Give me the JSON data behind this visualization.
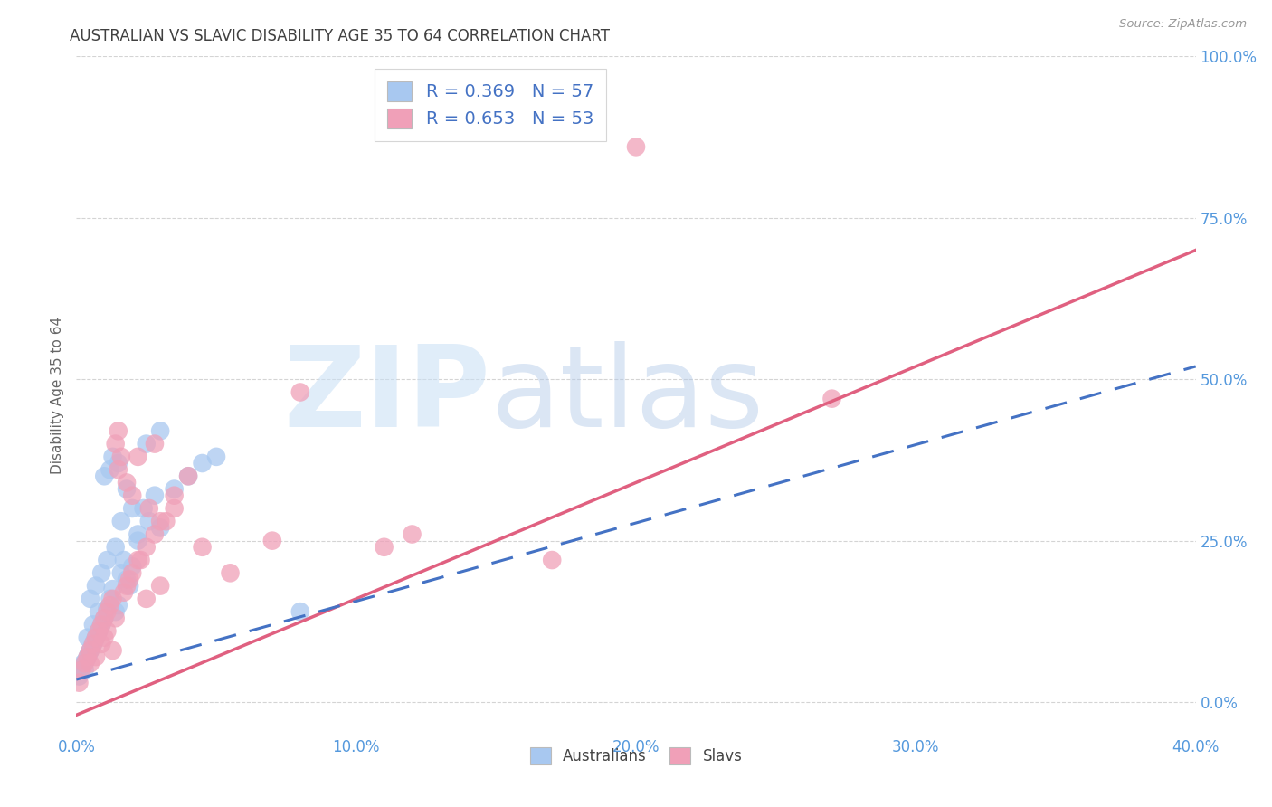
{
  "title": "AUSTRALIAN VS SLAVIC DISABILITY AGE 35 TO 64 CORRELATION CHART",
  "source": "Source: ZipAtlas.com",
  "xlabel_vals": [
    0.0,
    10.0,
    20.0,
    30.0,
    40.0
  ],
  "ylabel": "Disability Age 35 to 64",
  "ylabel_right_vals": [
    0.0,
    25.0,
    50.0,
    75.0,
    100.0
  ],
  "ylim": [
    -5,
    100
  ],
  "xlim": [
    0,
    40
  ],
  "australian_R": 0.369,
  "australian_N": 57,
  "slavic_R": 0.653,
  "slavic_N": 53,
  "legend_label_1": "R = 0.369   N = 57",
  "legend_label_2": "R = 0.653   N = 53",
  "legend_labels": [
    "Australians",
    "Slavs"
  ],
  "dot_color_australian": "#a8c8f0",
  "dot_color_slavic": "#f0a0b8",
  "line_color_australian": "#4472c4",
  "line_color_slavic": "#e06080",
  "watermark_zip": "ZIP",
  "watermark_atlas": "atlas",
  "background_color": "#ffffff",
  "grid_color": "#d0d0d0",
  "title_color": "#404040",
  "axis_label_color": "#5599dd",
  "legend_text_color": "#4472c4",
  "aus_line_x0": 0.0,
  "aus_line_y0": 3.5,
  "aus_line_x1": 40.0,
  "aus_line_y1": 52.0,
  "slav_line_x0": 0.0,
  "slav_line_y0": -2.0,
  "slav_line_x1": 40.0,
  "slav_line_y1": 70.0,
  "australian_x": [
    0.1,
    0.15,
    0.2,
    0.25,
    0.3,
    0.35,
    0.4,
    0.45,
    0.5,
    0.55,
    0.6,
    0.65,
    0.7,
    0.75,
    0.8,
    0.85,
    0.9,
    0.95,
    1.0,
    1.1,
    1.2,
    1.3,
    1.4,
    1.5,
    1.6,
    1.7,
    1.8,
    1.9,
    2.0,
    2.2,
    2.4,
    2.6,
    2.8,
    3.0,
    3.5,
    4.0,
    4.5,
    5.0,
    1.0,
    1.2,
    1.5,
    1.8,
    2.0,
    2.5,
    3.0,
    1.3,
    1.6,
    0.5,
    0.7,
    0.9,
    1.1,
    0.4,
    0.6,
    0.8,
    1.4,
    2.2,
    8.0
  ],
  "australian_y": [
    4.0,
    5.0,
    5.5,
    6.0,
    5.0,
    6.5,
    7.0,
    7.5,
    8.0,
    8.5,
    9.0,
    9.5,
    10.0,
    10.5,
    11.0,
    11.5,
    12.0,
    12.5,
    13.0,
    14.5,
    16.0,
    17.5,
    14.0,
    15.0,
    20.0,
    22.0,
    19.0,
    18.0,
    21.0,
    25.0,
    30.0,
    28.0,
    32.0,
    27.0,
    33.0,
    35.0,
    37.0,
    38.0,
    35.0,
    36.0,
    37.0,
    33.0,
    30.0,
    40.0,
    42.0,
    38.0,
    28.0,
    16.0,
    18.0,
    20.0,
    22.0,
    10.0,
    12.0,
    14.0,
    24.0,
    26.0,
    14.0
  ],
  "slavic_x": [
    0.1,
    0.2,
    0.3,
    0.4,
    0.5,
    0.6,
    0.7,
    0.8,
    0.9,
    1.0,
    1.1,
    1.2,
    1.3,
    1.4,
    1.5,
    1.6,
    1.7,
    1.8,
    1.9,
    2.0,
    2.2,
    2.5,
    2.8,
    3.0,
    3.5,
    4.0,
    2.0,
    2.3,
    2.6,
    3.2,
    1.5,
    1.8,
    2.2,
    2.8,
    3.5,
    4.5,
    5.5,
    7.0,
    8.0,
    11.0,
    12.0,
    17.0,
    20.0,
    3.0,
    2.5,
    1.0,
    1.3,
    0.5,
    0.7,
    0.9,
    1.1,
    1.4,
    27.0
  ],
  "slavic_y": [
    3.0,
    5.0,
    6.0,
    7.0,
    8.0,
    9.0,
    10.0,
    11.0,
    12.0,
    13.0,
    14.0,
    15.0,
    16.0,
    40.0,
    42.0,
    38.0,
    17.0,
    18.0,
    19.0,
    20.0,
    22.0,
    24.0,
    26.0,
    28.0,
    30.0,
    35.0,
    32.0,
    22.0,
    30.0,
    28.0,
    36.0,
    34.0,
    38.0,
    40.0,
    32.0,
    24.0,
    20.0,
    25.0,
    48.0,
    24.0,
    26.0,
    22.0,
    86.0,
    18.0,
    16.0,
    10.0,
    8.0,
    6.0,
    7.0,
    9.0,
    11.0,
    13.0,
    47.0
  ]
}
